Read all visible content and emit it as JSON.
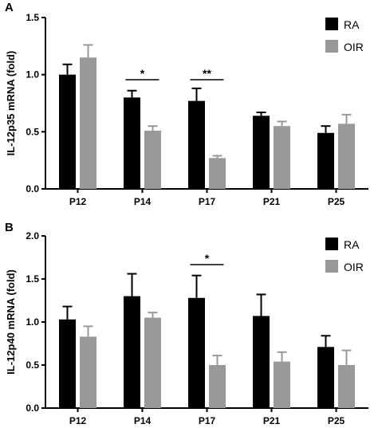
{
  "chart_data": [
    {
      "panel": "A",
      "type": "bar",
      "ylabel": "IL-12p35 mRNA (fold)",
      "xlabel": "",
      "ylim": [
        0,
        1.5
      ],
      "yticks": [
        "0.0",
        "0.5",
        "1.0",
        "1.5"
      ],
      "categories": [
        "P12",
        "P14",
        "P17",
        "P21",
        "P25"
      ],
      "series": [
        {
          "name": "RA",
          "color": "#000000",
          "values": [
            1.0,
            0.8,
            0.77,
            0.64,
            0.49
          ],
          "errors": [
            0.09,
            0.06,
            0.11,
            0.03,
            0.06
          ]
        },
        {
          "name": "OIR",
          "color": "#999999",
          "values": [
            1.15,
            0.51,
            0.27,
            0.55,
            0.57
          ],
          "errors": [
            0.11,
            0.04,
            0.02,
            0.04,
            0.08
          ]
        }
      ],
      "significance": [
        {
          "category": "P14",
          "label": "*"
        },
        {
          "category": "P17",
          "label": "**"
        }
      ],
      "legend": "top-right",
      "grid": false
    },
    {
      "panel": "B",
      "type": "bar",
      "ylabel": "IL-12p40 mRNA (fold)",
      "xlabel": "",
      "ylim": [
        0,
        2.0
      ],
      "yticks": [
        "0.0",
        "0.5",
        "1.0",
        "1.5",
        "2.0"
      ],
      "categories": [
        "P12",
        "P14",
        "P17",
        "P21",
        "P25"
      ],
      "series": [
        {
          "name": "RA",
          "color": "#000000",
          "values": [
            1.03,
            1.3,
            1.28,
            1.07,
            0.71
          ],
          "errors": [
            0.15,
            0.26,
            0.26,
            0.25,
            0.13
          ]
        },
        {
          "name": "OIR",
          "color": "#999999",
          "values": [
            0.83,
            1.05,
            0.5,
            0.54,
            0.5
          ],
          "errors": [
            0.12,
            0.06,
            0.11,
            0.11,
            0.17
          ]
        }
      ],
      "significance": [
        {
          "category": "P17",
          "label": "*"
        }
      ],
      "legend": "top-right",
      "grid": false
    }
  ]
}
